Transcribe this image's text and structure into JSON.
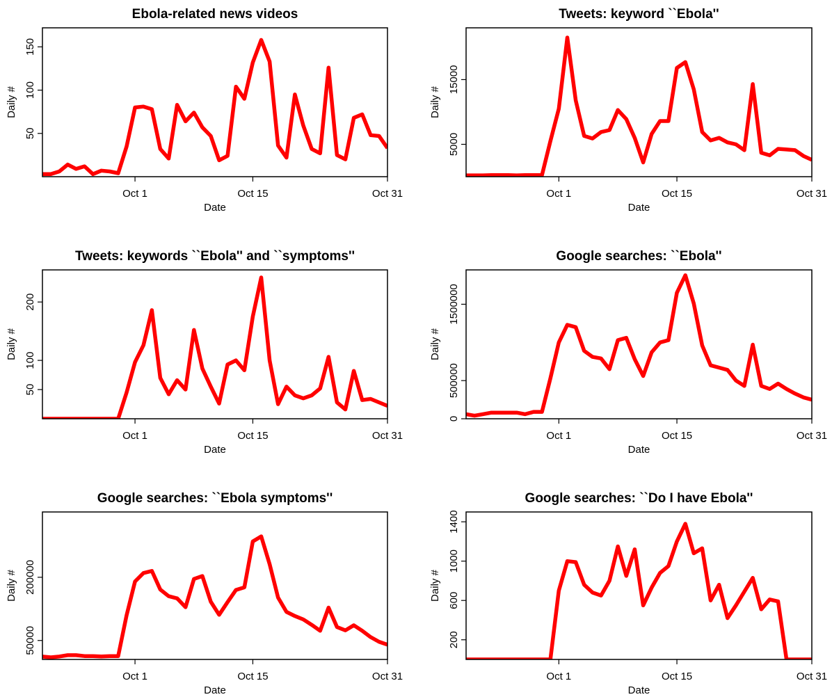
{
  "chart_data": [
    {
      "type": "line",
      "title": "Ebola-related news videos",
      "xlabel": "Date",
      "ylabel": "Daily #",
      "x_ticks": [
        "Oct 1",
        "Oct 15",
        "Oct 31"
      ],
      "y_ticks": [
        "50",
        "100",
        "150"
      ],
      "ylim": [
        0,
        172
      ],
      "grid": false,
      "line_color": "#ff0000",
      "series": [
        {
          "x": [
            "2014-09-20",
            "2014-09-21",
            "2014-09-22",
            "2014-09-23",
            "2014-09-24",
            "2014-09-25",
            "2014-09-26",
            "2014-09-27",
            "2014-09-28",
            "2014-09-29",
            "2014-09-30",
            "2014-10-01",
            "2014-10-02",
            "2014-10-03",
            "2014-10-04",
            "2014-10-05",
            "2014-10-06",
            "2014-10-07",
            "2014-10-08",
            "2014-10-09",
            "2014-10-10",
            "2014-10-11",
            "2014-10-12",
            "2014-10-13",
            "2014-10-14",
            "2014-10-15",
            "2014-10-16",
            "2014-10-17",
            "2014-10-18",
            "2014-10-19",
            "2014-10-20",
            "2014-10-21",
            "2014-10-22",
            "2014-10-23",
            "2014-10-24",
            "2014-10-25",
            "2014-10-26",
            "2014-10-27",
            "2014-10-28",
            "2014-10-29",
            "2014-10-30",
            "2014-10-31"
          ],
          "values": [
            3,
            3,
            6,
            14,
            9,
            12,
            3,
            7,
            6,
            4,
            35,
            80,
            81,
            78,
            32,
            21,
            83,
            64,
            74,
            57,
            47,
            19,
            24,
            104,
            90,
            132,
            158,
            133,
            36,
            22,
            95,
            59,
            32,
            27,
            126,
            25,
            20,
            68,
            72,
            48,
            47,
            33
          ]
        }
      ]
    },
    {
      "type": "line",
      "title": "Tweets: keyword ``Ebola''",
      "xlabel": "Date",
      "ylabel": "Daily #",
      "x_ticks": [
        "Oct 1",
        "Oct 15",
        "Oct 31"
      ],
      "y_ticks": [
        "5000",
        "15000"
      ],
      "ylim": [
        0,
        23000
      ],
      "grid": false,
      "line_color": "#ff0000",
      "series": [
        {
          "x": [
            "2014-09-20",
            "2014-09-21",
            "2014-09-22",
            "2014-09-23",
            "2014-09-24",
            "2014-09-25",
            "2014-09-26",
            "2014-09-27",
            "2014-09-28",
            "2014-09-29",
            "2014-09-30",
            "2014-10-01",
            "2014-10-02",
            "2014-10-03",
            "2014-10-04",
            "2014-10-05",
            "2014-10-06",
            "2014-10-07",
            "2014-10-08",
            "2014-10-09",
            "2014-10-10",
            "2014-10-11",
            "2014-10-12",
            "2014-10-13",
            "2014-10-14",
            "2014-10-15",
            "2014-10-16",
            "2014-10-17",
            "2014-10-18",
            "2014-10-19",
            "2014-10-20",
            "2014-10-21",
            "2014-10-22",
            "2014-10-23",
            "2014-10-24",
            "2014-10-25",
            "2014-10-26",
            "2014-10-27",
            "2014-10-28",
            "2014-10-29",
            "2014-10-30",
            "2014-10-31"
          ],
          "values": [
            200,
            200,
            200,
            250,
            250,
            250,
            200,
            250,
            250,
            250,
            5500,
            10500,
            21500,
            11800,
            6300,
            5900,
            6900,
            7200,
            10300,
            8900,
            6000,
            2200,
            6600,
            8600,
            8600,
            16800,
            17700,
            13500,
            6900,
            5600,
            6000,
            5300,
            5000,
            4100,
            14300,
            3700,
            3300,
            4300,
            4200,
            4100,
            3200,
            2600
          ]
        }
      ]
    },
    {
      "type": "line",
      "title": "Tweets: keywords ``Ebola'' and ``symptoms''",
      "xlabel": "Date",
      "ylabel": "Daily #",
      "x_ticks": [
        "Oct 1",
        "Oct 15",
        "Oct 31"
      ],
      "y_ticks": [
        "50",
        "100",
        "200"
      ],
      "ylim": [
        0,
        255
      ],
      "grid": false,
      "line_color": "#ff0000",
      "series": [
        {
          "x": [
            "2014-09-20",
            "2014-09-21",
            "2014-09-22",
            "2014-09-23",
            "2014-09-24",
            "2014-09-25",
            "2014-09-26",
            "2014-09-27",
            "2014-09-28",
            "2014-09-29",
            "2014-09-30",
            "2014-10-01",
            "2014-10-02",
            "2014-10-03",
            "2014-10-04",
            "2014-10-05",
            "2014-10-06",
            "2014-10-07",
            "2014-10-08",
            "2014-10-09",
            "2014-10-10",
            "2014-10-11",
            "2014-10-12",
            "2014-10-13",
            "2014-10-14",
            "2014-10-15",
            "2014-10-16",
            "2014-10-17",
            "2014-10-18",
            "2014-10-19",
            "2014-10-20",
            "2014-10-21",
            "2014-10-22",
            "2014-10-23",
            "2014-10-24",
            "2014-10-25",
            "2014-10-26",
            "2014-10-27",
            "2014-10-28",
            "2014-10-29",
            "2014-10-30",
            "2014-10-31"
          ],
          "values": [
            0,
            0,
            0,
            0,
            0,
            0,
            0,
            0,
            0,
            0,
            45,
            97,
            126,
            186,
            70,
            42,
            66,
            50,
            152,
            86,
            55,
            26,
            93,
            100,
            83,
            175,
            242,
            100,
            25,
            55,
            40,
            35,
            40,
            52,
            106,
            28,
            16,
            82,
            32,
            34,
            28,
            22
          ]
        }
      ]
    },
    {
      "type": "line",
      "title": "Google searches: ``Ebola''",
      "xlabel": "Date",
      "ylabel": "Daily #",
      "x_ticks": [
        "Oct 1",
        "Oct 15",
        "Oct 31"
      ],
      "y_ticks": [
        "0",
        "500000",
        "1500000"
      ],
      "ylim": [
        0,
        1950000
      ],
      "grid": false,
      "line_color": "#ff0000",
      "series": [
        {
          "x": [
            "2014-09-20",
            "2014-09-21",
            "2014-09-22",
            "2014-09-23",
            "2014-09-24",
            "2014-09-25",
            "2014-09-26",
            "2014-09-27",
            "2014-09-28",
            "2014-09-29",
            "2014-09-30",
            "2014-10-01",
            "2014-10-02",
            "2014-10-03",
            "2014-10-04",
            "2014-10-05",
            "2014-10-06",
            "2014-10-07",
            "2014-10-08",
            "2014-10-09",
            "2014-10-10",
            "2014-10-11",
            "2014-10-12",
            "2014-10-13",
            "2014-10-14",
            "2014-10-15",
            "2014-10-16",
            "2014-10-17",
            "2014-10-18",
            "2014-10-19",
            "2014-10-20",
            "2014-10-21",
            "2014-10-22",
            "2014-10-23",
            "2014-10-24",
            "2014-10-25",
            "2014-10-26",
            "2014-10-27",
            "2014-10-28",
            "2014-10-29",
            "2014-10-30",
            "2014-10-31"
          ],
          "values": [
            60000,
            40000,
            60000,
            80000,
            80000,
            80000,
            80000,
            60000,
            90000,
            90000,
            530000,
            1000000,
            1230000,
            1200000,
            890000,
            810000,
            790000,
            650000,
            1030000,
            1060000,
            780000,
            560000,
            870000,
            1000000,
            1030000,
            1650000,
            1880000,
            1510000,
            960000,
            700000,
            670000,
            640000,
            500000,
            430000,
            970000,
            430000,
            390000,
            460000,
            390000,
            330000,
            280000,
            250000
          ]
        }
      ]
    },
    {
      "type": "line",
      "title": "Google searches: ``Ebola symptoms''",
      "xlabel": "Date",
      "ylabel": "Daily #",
      "x_ticks": [
        "Oct 1",
        "Oct 15",
        "Oct 31"
      ],
      "y_ticks": [
        "50000",
        "200000"
      ],
      "ylim": [
        5000,
        355000
      ],
      "grid": false,
      "line_color": "#ff0000",
      "series": [
        {
          "x": [
            "2014-09-20",
            "2014-09-21",
            "2014-09-22",
            "2014-09-23",
            "2014-09-24",
            "2014-09-25",
            "2014-09-26",
            "2014-09-27",
            "2014-09-28",
            "2014-09-29",
            "2014-09-30",
            "2014-10-01",
            "2014-10-02",
            "2014-10-03",
            "2014-10-04",
            "2014-10-05",
            "2014-10-06",
            "2014-10-07",
            "2014-10-08",
            "2014-10-09",
            "2014-10-10",
            "2014-10-11",
            "2014-10-12",
            "2014-10-13",
            "2014-10-14",
            "2014-10-15",
            "2014-10-16",
            "2014-10-17",
            "2014-10-18",
            "2014-10-19",
            "2014-10-20",
            "2014-10-21",
            "2014-10-22",
            "2014-10-23",
            "2014-10-24",
            "2014-10-25",
            "2014-10-26",
            "2014-10-27",
            "2014-10-28",
            "2014-10-29",
            "2014-10-30",
            "2014-10-31"
          ],
          "values": [
            12000,
            10000,
            12000,
            15000,
            15000,
            13000,
            13000,
            12000,
            13000,
            13000,
            110000,
            190000,
            210000,
            215000,
            171000,
            155000,
            150000,
            129000,
            196000,
            203000,
            142000,
            111000,
            141000,
            170000,
            176000,
            285000,
            297000,
            231000,
            152000,
            118000,
            108000,
            100000,
            87000,
            73000,
            128000,
            82000,
            74000,
            86000,
            73000,
            58000,
            47000,
            40000
          ]
        }
      ]
    },
    {
      "type": "line",
      "title": "Google searches: ``Do I have Ebola''",
      "xlabel": "Date",
      "ylabel": "Daily #",
      "x_ticks": [
        "Oct 1",
        "Oct 15",
        "Oct 31"
      ],
      "y_ticks": [
        "200",
        "600",
        "1000",
        "1400"
      ],
      "ylim": [
        0,
        1500
      ],
      "grid": false,
      "line_color": "#ff0000",
      "series": [
        {
          "x": [
            "2014-09-20",
            "2014-09-21",
            "2014-09-22",
            "2014-09-23",
            "2014-09-24",
            "2014-09-25",
            "2014-09-26",
            "2014-09-27",
            "2014-09-28",
            "2014-09-29",
            "2014-09-30",
            "2014-10-01",
            "2014-10-02",
            "2014-10-03",
            "2014-10-04",
            "2014-10-05",
            "2014-10-06",
            "2014-10-07",
            "2014-10-08",
            "2014-10-09",
            "2014-10-10",
            "2014-10-11",
            "2014-10-12",
            "2014-10-13",
            "2014-10-14",
            "2014-10-15",
            "2014-10-16",
            "2014-10-17",
            "2014-10-18",
            "2014-10-19",
            "2014-10-20",
            "2014-10-21",
            "2014-10-22",
            "2014-10-23",
            "2014-10-24",
            "2014-10-25",
            "2014-10-26",
            "2014-10-27",
            "2014-10-28",
            "2014-10-29",
            "2014-10-30",
            "2014-10-31"
          ],
          "values": [
            0,
            0,
            0,
            0,
            0,
            0,
            0,
            0,
            0,
            0,
            0,
            700,
            1000,
            990,
            760,
            680,
            650,
            800,
            1150,
            850,
            1120,
            550,
            730,
            880,
            950,
            1200,
            1380,
            1080,
            1130,
            600,
            760,
            420,
            550,
            690,
            830,
            510,
            610,
            590,
            0,
            0,
            0,
            0
          ]
        }
      ]
    }
  ]
}
